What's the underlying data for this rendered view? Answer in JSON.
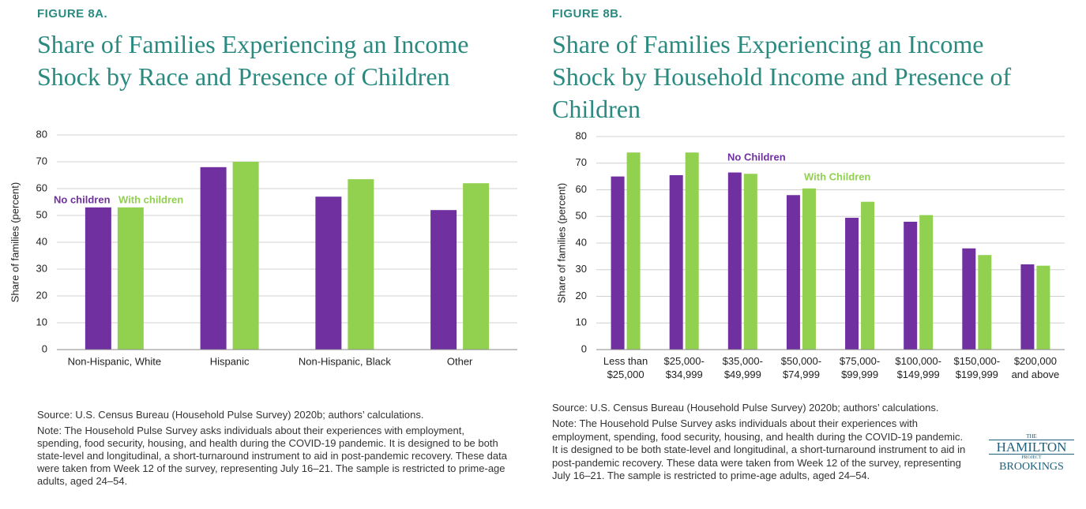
{
  "chart_data": [
    {
      "type": "bar",
      "figure_label": "FIGURE 8A.",
      "title": "Share of Families Experiencing an Income Shock by Race and Presence of Children",
      "y_label": "Share of families (percent)",
      "categories": [
        "Non-Hispanic, White",
        "Hispanic",
        "Non-Hispanic, Black",
        "Other"
      ],
      "series": [
        {
          "name": "No children",
          "color": "#7030a0",
          "values": [
            53,
            68,
            57,
            52
          ]
        },
        {
          "name": "With children",
          "color": "#92d050",
          "values": [
            53,
            70,
            63.5,
            62
          ]
        }
      ],
      "ylim": [
        0,
        80
      ],
      "yticks": [
        0,
        10,
        20,
        30,
        40,
        50,
        60,
        70,
        80
      ],
      "grid": true,
      "source": "Source: U.S. Census Bureau (Household Pulse Survey) 2020b; authors’ calculations.",
      "note": "Note: The Household Pulse Survey asks individuals about their experiences with employment, spending, food security, housing, and health during the COVID-19 pandemic. It is designed to be both state-level and longitudinal, a short-turnaround instrument to aid in post-pandemic recovery. These data were taken from Week 12 of the survey, representing July 16–21. The sample is restricted to prime-age adults, aged 24–54."
    },
    {
      "type": "bar",
      "figure_label": "FIGURE 8B.",
      "title": "Share of Families Experiencing an Income Shock by Household Income and Presence of Children",
      "y_label": "Share of families (percent)",
      "categories": [
        "Less than\n$25,000",
        "$25,000-\n$34,999",
        "$35,000-\n$49,999",
        "$50,000-\n$74,999",
        "$75,000-\n$99,999",
        "$100,000-\n$149,999",
        "$150,000-\n$199,999",
        "$200,000\nand above"
      ],
      "series": [
        {
          "name": "No Children",
          "color": "#7030a0",
          "values": [
            65,
            65.5,
            66.5,
            58,
            49.5,
            48,
            38,
            32
          ]
        },
        {
          "name": "With Children",
          "color": "#92d050",
          "values": [
            74,
            74,
            66,
            60.5,
            55.5,
            50.5,
            35.5,
            31.5
          ]
        }
      ],
      "ylim": [
        0,
        80
      ],
      "yticks": [
        0,
        10,
        20,
        30,
        40,
        50,
        60,
        70,
        80
      ],
      "grid": true,
      "source": "Source: U.S. Census Bureau (Household Pulse Survey) 2020b; authors’ calculations.",
      "note": "Note: The Household Pulse Survey asks individuals about their experiences with employment, spending, food security, housing, and health during the COVID-19 pandemic. It is designed to be both state-level and longitudinal, a short-turnaround instrument to aid in post-pandemic recovery. These data were taken from Week 12 of the survey, representing July 16–21. The sample is restricted to prime-age adults, aged 24–54."
    }
  ],
  "logo": {
    "top": "THE",
    "name": "HAMILTON",
    "sub": "PROJECT",
    "org": "BROOKINGS"
  }
}
